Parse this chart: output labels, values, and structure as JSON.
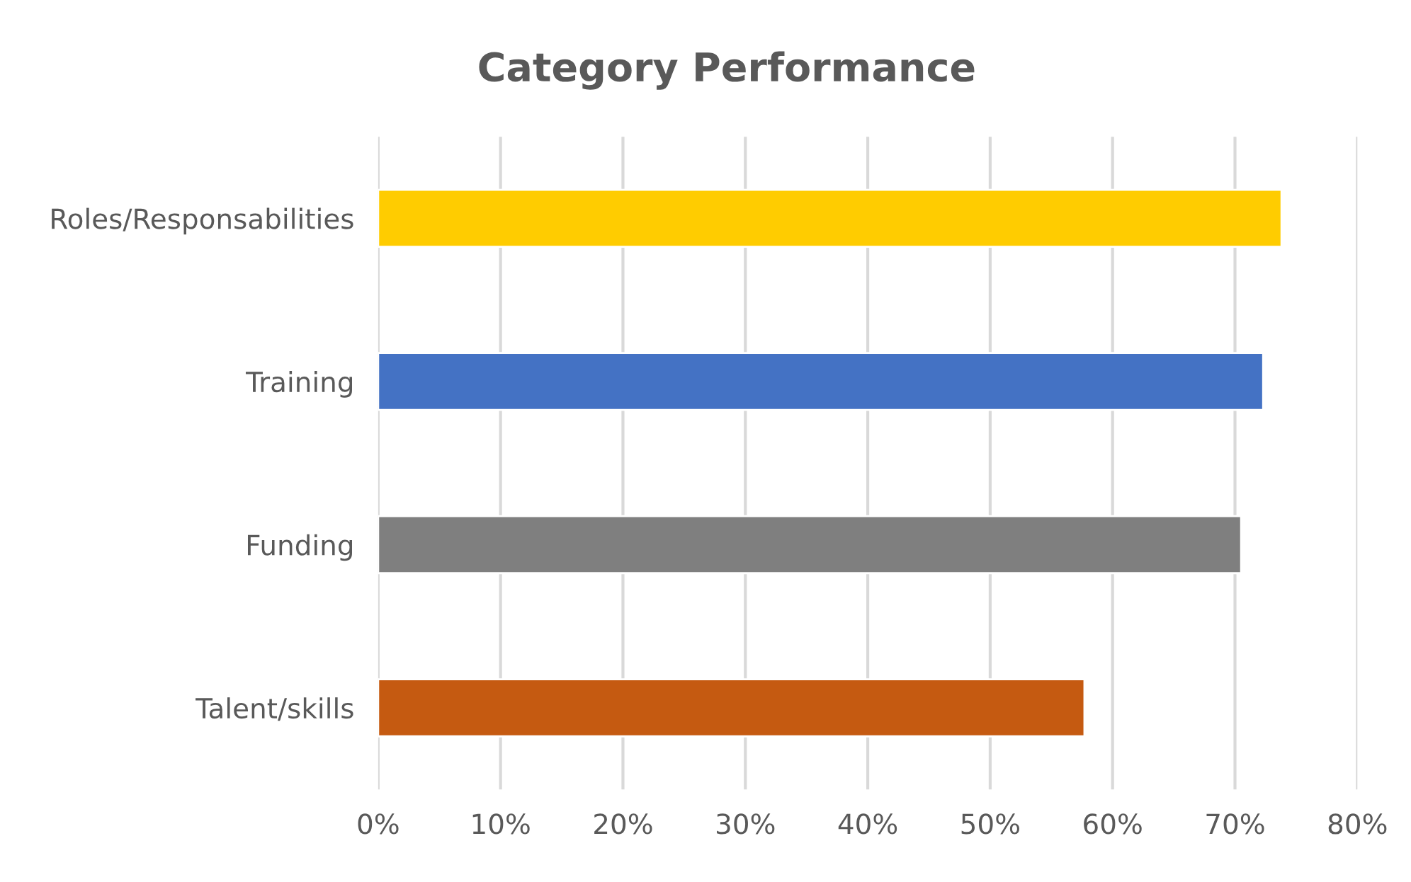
{
  "chart_data": {
    "type": "bar",
    "orientation": "horizontal",
    "title": "Category Performance",
    "categories": [
      "Roles/Responsabilities",
      "Training",
      "Funding",
      "Talent/skills"
    ],
    "values": [
      73.8,
      72.3,
      70.5,
      57.7
    ],
    "colors": [
      "#ffcc00",
      "#4472c4",
      "#7f7f7f",
      "#c55a11"
    ],
    "xlim": [
      0,
      80
    ],
    "xticks": [
      {
        "value": 0,
        "label": "0%"
      },
      {
        "value": 10,
        "label": "10%"
      },
      {
        "value": 20,
        "label": "20%"
      },
      {
        "value": 30,
        "label": "30%"
      },
      {
        "value": 40,
        "label": "40%"
      },
      {
        "value": 50,
        "label": "50%"
      },
      {
        "value": 60,
        "label": "60%"
      },
      {
        "value": 70,
        "label": "70%"
      },
      {
        "value": 80,
        "label": "80%"
      }
    ],
    "grid": "x",
    "legend": false
  }
}
